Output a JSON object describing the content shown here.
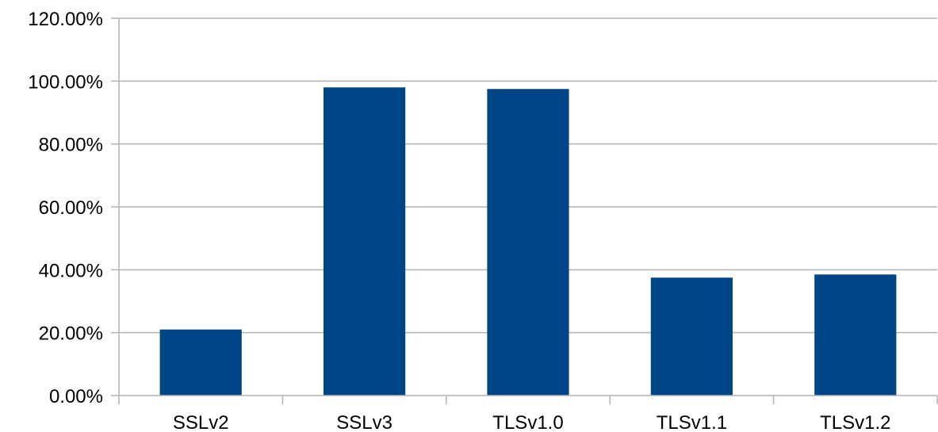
{
  "chart_data": {
    "type": "bar",
    "title": "",
    "xlabel": "",
    "ylabel": "",
    "categories": [
      "SSLv2",
      "SSLv3",
      "TLSv1.0",
      "TLSv1.1",
      "TLSv1.2"
    ],
    "values": [
      0.21,
      0.98,
      0.975,
      0.375,
      0.385
    ],
    "ylim": [
      0,
      1.2
    ],
    "y_ticks": [
      0,
      0.2,
      0.4,
      0.6,
      0.8,
      1.0,
      1.2
    ],
    "y_tick_labels": [
      "0.00%",
      "20.00%",
      "40.00%",
      "60.00%",
      "80.00%",
      "100.00%",
      "120.00%"
    ],
    "grid": true,
    "legend": "none",
    "bar_color": "#004586"
  }
}
